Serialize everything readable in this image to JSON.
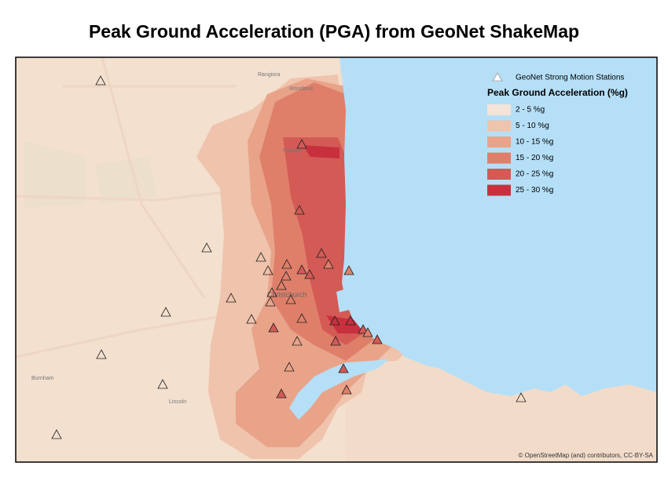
{
  "title": "Peak Ground Acceleration (PGA) from GeoNet ShakeMap",
  "legend": {
    "stations_label": "GeoNet Strong Motion Stations",
    "title": "Peak Ground Acceleration (%g)",
    "items": [
      {
        "label": "2 - 5 %g",
        "color": "#f5e4d8"
      },
      {
        "label": "5 - 10 %g",
        "color": "#efc3ac"
      },
      {
        "label": "10 - 15 %g",
        "color": "#e9a389"
      },
      {
        "label": "15 - 20 %g",
        "color": "#df7f6a"
      },
      {
        "label": "20 - 25 %g",
        "color": "#d35a55"
      },
      {
        "label": "25 - 30 %g",
        "color": "#c8303e"
      }
    ]
  },
  "places": [
    "Rangiora",
    "Woodend",
    "Kaiapoi",
    "Christchurch",
    "Lincoln",
    "Burnham"
  ],
  "attribution": "© OpenStreetMap (and) contributors, CC-BY-SA"
}
